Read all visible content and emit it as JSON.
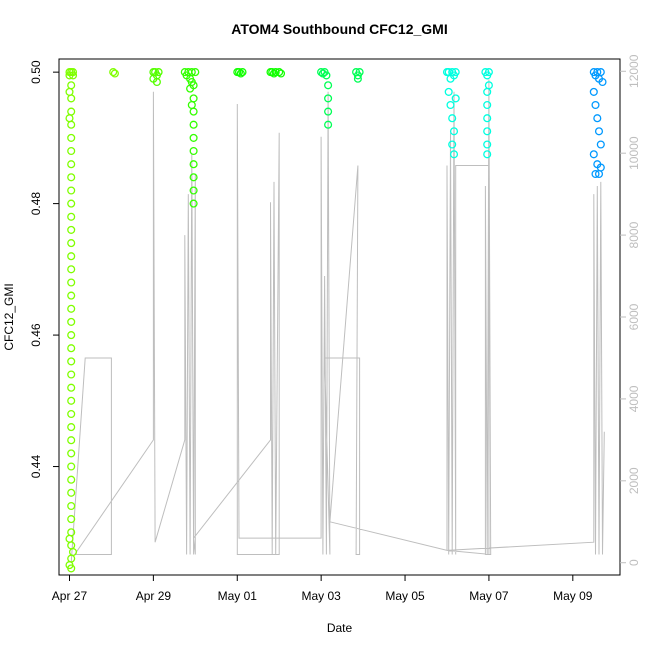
{
  "chart_data": {
    "type": "scatter",
    "title": "ATOM4 Southbound CFC12_GMI",
    "xlabel": "Date",
    "ylabel": "CFC12_GMI",
    "x_ticks": [
      "Apr 27",
      "Apr 29",
      "May 01",
      "May 03",
      "May 05",
      "May 07",
      "May 09"
    ],
    "y_ticks": [
      "0.44",
      "0.46",
      "0.48",
      "0.50"
    ],
    "y2_ticks": [
      "0",
      "2000",
      "4000",
      "6000",
      "8000",
      "10000",
      "12000"
    ],
    "xlim": [
      "2018-04-26 18:00",
      "2018-05-10 03:00"
    ],
    "ylim": [
      0.4235,
      0.502
    ],
    "y2lim": [
      -300,
      12300
    ],
    "grid": false,
    "legend": "none",
    "series": [
      {
        "kind": "points",
        "color": "#7fff00",
        "points": [
          [
            "2018-04-27 01:00",
            0.5
          ],
          [
            "2018-04-27 01:00",
            0.498
          ],
          [
            "2018-04-27 01:00",
            0.496
          ],
          [
            "2018-04-27 01:00",
            0.494
          ],
          [
            "2018-04-27 01:00",
            0.492
          ],
          [
            "2018-04-27 01:00",
            0.49
          ],
          [
            "2018-04-27 01:00",
            0.488
          ],
          [
            "2018-04-27 01:00",
            0.486
          ],
          [
            "2018-04-27 01:00",
            0.484
          ],
          [
            "2018-04-27 01:00",
            0.482
          ],
          [
            "2018-04-27 01:00",
            0.48
          ],
          [
            "2018-04-27 01:00",
            0.478
          ],
          [
            "2018-04-27 01:00",
            0.476
          ],
          [
            "2018-04-27 01:00",
            0.474
          ],
          [
            "2018-04-27 01:00",
            0.472
          ],
          [
            "2018-04-27 01:00",
            0.47
          ],
          [
            "2018-04-27 01:00",
            0.468
          ],
          [
            "2018-04-27 01:00",
            0.466
          ],
          [
            "2018-04-27 01:00",
            0.464
          ],
          [
            "2018-04-27 01:00",
            0.462
          ],
          [
            "2018-04-27 01:00",
            0.46
          ],
          [
            "2018-04-27 01:00",
            0.458
          ],
          [
            "2018-04-27 01:00",
            0.456
          ],
          [
            "2018-04-27 01:00",
            0.454
          ],
          [
            "2018-04-27 01:00",
            0.452
          ],
          [
            "2018-04-27 01:00",
            0.45
          ],
          [
            "2018-04-27 01:00",
            0.448
          ],
          [
            "2018-04-27 01:00",
            0.446
          ],
          [
            "2018-04-27 01:00",
            0.444
          ],
          [
            "2018-04-27 01:00",
            0.442
          ],
          [
            "2018-04-27 01:00",
            0.44
          ],
          [
            "2018-04-27 01:00",
            0.438
          ],
          [
            "2018-04-27 01:00",
            0.436
          ],
          [
            "2018-04-27 01:00",
            0.434
          ],
          [
            "2018-04-27 01:00",
            0.432
          ],
          [
            "2018-04-27 01:00",
            0.43
          ],
          [
            "2018-04-27 01:00",
            0.428
          ],
          [
            "2018-04-27 01:00",
            0.426
          ],
          [
            "2018-04-27 01:00",
            0.4245
          ],
          [
            "2018-04-27 00:00",
            0.5
          ],
          [
            "2018-04-27 02:00",
            0.5
          ],
          [
            "2018-04-27 00:00",
            0.4995
          ],
          [
            "2018-04-27 02:00",
            0.4995
          ],
          [
            "2018-04-27 00:00",
            0.497
          ],
          [
            "2018-04-27 00:00",
            0.493
          ],
          [
            "2018-04-27 00:00",
            0.429
          ],
          [
            "2018-04-27 02:00",
            0.427
          ],
          [
            "2018-04-27 00:00",
            0.425
          ]
        ]
      },
      {
        "kind": "points",
        "color": "#7fff00",
        "points": [
          [
            "2018-04-28 01:00",
            0.5
          ],
          [
            "2018-04-28 02:00",
            0.4998
          ]
        ]
      },
      {
        "kind": "points",
        "color": "#55ff00",
        "points": [
          [
            "2018-04-29 00:00",
            0.5
          ],
          [
            "2018-04-29 01:00",
            0.5
          ],
          [
            "2018-04-29 02:00",
            0.4995
          ],
          [
            "2018-04-29 03:00",
            0.5
          ],
          [
            "2018-04-29 00:00",
            0.499
          ],
          [
            "2018-04-29 02:00",
            0.4985
          ]
        ]
      },
      {
        "kind": "points",
        "color": "#33ff00",
        "points": [
          [
            "2018-04-29 18:00",
            0.5
          ],
          [
            "2018-04-29 19:00",
            0.4995
          ],
          [
            "2018-04-29 20:00",
            0.5
          ],
          [
            "2018-04-29 21:00",
            0.499
          ],
          [
            "2018-04-29 22:00",
            0.5
          ],
          [
            "2018-04-30 00:00",
            0.5
          ],
          [
            "2018-04-29 23:00",
            0.498
          ],
          [
            "2018-04-29 23:00",
            0.496
          ],
          [
            "2018-04-29 23:00",
            0.494
          ],
          [
            "2018-04-29 23:00",
            0.492
          ],
          [
            "2018-04-29 23:00",
            0.49
          ],
          [
            "2018-04-29 23:00",
            0.488
          ],
          [
            "2018-04-29 23:00",
            0.486
          ],
          [
            "2018-04-29 23:00",
            0.484
          ],
          [
            "2018-04-29 23:00",
            0.482
          ],
          [
            "2018-04-29 23:00",
            0.48
          ],
          [
            "2018-04-29 22:00",
            0.4985
          ],
          [
            "2018-04-29 21:00",
            0.4975
          ],
          [
            "2018-04-29 22:00",
            0.495
          ]
        ]
      },
      {
        "kind": "points",
        "color": "#11ff00",
        "points": [
          [
            "2018-05-01 00:00",
            0.5
          ],
          [
            "2018-05-01 01:00",
            0.5
          ],
          [
            "2018-05-01 02:00",
            0.4998
          ],
          [
            "2018-05-01 03:00",
            0.5
          ],
          [
            "2018-05-01 19:00",
            0.5
          ],
          [
            "2018-05-01 20:00",
            0.5
          ],
          [
            "2018-05-01 21:00",
            0.4998
          ],
          [
            "2018-05-01 22:00",
            0.5
          ],
          [
            "2018-05-02 00:00",
            0.5
          ],
          [
            "2018-05-02 01:00",
            0.4998
          ]
        ]
      },
      {
        "kind": "points",
        "color": "#00ff55",
        "points": [
          [
            "2018-05-03 00:00",
            0.5
          ],
          [
            "2018-05-03 01:00",
            0.4998
          ],
          [
            "2018-05-03 02:00",
            0.5
          ],
          [
            "2018-05-03 03:00",
            0.4995
          ],
          [
            "2018-05-03 04:00",
            0.498
          ],
          [
            "2018-05-03 04:00",
            0.496
          ],
          [
            "2018-05-03 04:00",
            0.494
          ],
          [
            "2018-05-03 04:00",
            0.492
          ],
          [
            "2018-05-03 20:00",
            0.5
          ],
          [
            "2018-05-03 21:00",
            0.4995
          ],
          [
            "2018-05-03 22:00",
            0.5
          ],
          [
            "2018-05-03 21:00",
            0.499
          ]
        ]
      },
      {
        "kind": "points",
        "color": "#00ffe0",
        "points": [
          [
            "2018-05-06 00:00",
            0.5
          ],
          [
            "2018-05-06 01:00",
            0.5
          ],
          [
            "2018-05-06 02:00",
            0.499
          ],
          [
            "2018-05-06 03:00",
            0.5
          ],
          [
            "2018-05-06 04:00",
            0.4995
          ],
          [
            "2018-05-06 05:00",
            0.5
          ],
          [
            "2018-05-06 01:00",
            0.497
          ],
          [
            "2018-05-06 02:00",
            0.495
          ],
          [
            "2018-05-06 03:00",
            0.493
          ],
          [
            "2018-05-06 04:00",
            0.491
          ],
          [
            "2018-05-06 03:00",
            0.489
          ],
          [
            "2018-05-06 04:00",
            0.4875
          ],
          [
            "2018-05-06 05:00",
            0.496
          ],
          [
            "2018-05-06 22:00",
            0.5
          ],
          [
            "2018-05-06 23:00",
            0.4995
          ],
          [
            "2018-05-07 00:00",
            0.5
          ],
          [
            "2018-05-06 23:00",
            0.497
          ],
          [
            "2018-05-06 23:00",
            0.495
          ],
          [
            "2018-05-06 23:00",
            0.493
          ],
          [
            "2018-05-06 23:00",
            0.491
          ],
          [
            "2018-05-06 23:00",
            0.489
          ],
          [
            "2018-05-06 23:00",
            0.4875
          ],
          [
            "2018-05-07 00:00",
            0.498
          ]
        ]
      },
      {
        "kind": "points",
        "color": "#0099ff",
        "points": [
          [
            "2018-05-09 12:00",
            0.5
          ],
          [
            "2018-05-09 13:00",
            0.4995
          ],
          [
            "2018-05-09 14:00",
            0.5
          ],
          [
            "2018-05-09 15:00",
            0.499
          ],
          [
            "2018-05-09 16:00",
            0.5
          ],
          [
            "2018-05-09 12:00",
            0.497
          ],
          [
            "2018-05-09 13:00",
            0.495
          ],
          [
            "2018-05-09 14:00",
            0.493
          ],
          [
            "2018-05-09 15:00",
            0.491
          ],
          [
            "2018-05-09 16:00",
            0.489
          ],
          [
            "2018-05-09 12:00",
            0.4875
          ],
          [
            "2018-05-09 14:00",
            0.486
          ],
          [
            "2018-05-09 13:00",
            0.4845
          ],
          [
            "2018-05-09 15:00",
            0.4845
          ],
          [
            "2018-05-09 16:00",
            0.4855
          ],
          [
            "2018-05-09 17:00",
            0.4985
          ]
        ]
      },
      {
        "kind": "line",
        "axis": "y2",
        "name": "",
        "color": "#bebebe",
        "points": [
          [
            "2018-04-27 01:00",
            0
          ],
          [
            "2018-04-27 09:00",
            5000
          ],
          [
            "2018-04-28 00:00",
            5000
          ],
          [
            "2018-04-28 00:00",
            200
          ],
          [
            "2018-04-27 03:00",
            200
          ],
          [
            "2018-04-29 00:00",
            3000
          ],
          [
            "2018-04-29 00:00",
            11500
          ],
          [
            "2018-04-29 01:00",
            500
          ],
          [
            "2018-04-29 18:00",
            3000
          ],
          [
            "2018-04-29 18:00",
            8000
          ],
          [
            "2018-04-29 19:00",
            200
          ],
          [
            "2018-04-29 20:00",
            9000
          ],
          [
            "2018-04-29 21:00",
            200
          ],
          [
            "2018-04-29 22:00",
            10000
          ],
          [
            "2018-04-29 23:00",
            200
          ],
          [
            "2018-04-30 00:00",
            9500
          ],
          [
            "2018-04-30 00:00",
            200
          ],
          [
            "2018-04-29 23:00",
            600
          ],
          [
            "2018-05-01 19:00",
            3000
          ],
          [
            "2018-05-01 19:00",
            8800
          ],
          [
            "2018-05-01 20:00",
            200
          ],
          [
            "2018-05-01 21:00",
            9300
          ],
          [
            "2018-05-01 22:00",
            200
          ],
          [
            "2018-05-02 00:00",
            10500
          ],
          [
            "2018-05-02 00:00",
            200
          ],
          [
            "2018-05-01 00:00",
            200
          ],
          [
            "2018-05-01 00:00",
            11200
          ],
          [
            "2018-05-01 01:00",
            600
          ],
          [
            "2018-05-03 00:00",
            600
          ],
          [
            "2018-05-03 00:00",
            10400
          ],
          [
            "2018-05-03 01:00",
            200
          ],
          [
            "2018-05-03 02:00",
            7000
          ],
          [
            "2018-05-03 03:00",
            200
          ],
          [
            "2018-05-03 04:00",
            11500
          ],
          [
            "2018-05-03 05:00",
            200
          ],
          [
            "2018-05-03 02:00",
            5000
          ],
          [
            "2018-05-03 22:00",
            5000
          ],
          [
            "2018-05-03 22:00",
            200
          ],
          [
            "2018-05-03 20:00",
            200
          ],
          [
            "2018-05-03 21:00",
            9700
          ],
          [
            "2018-05-03 05:00",
            1000
          ],
          [
            "2018-05-06 00:00",
            300
          ],
          [
            "2018-05-06 00:00",
            9700
          ],
          [
            "2018-05-06 01:00",
            200
          ],
          [
            "2018-05-06 02:00",
            10500
          ],
          [
            "2018-05-06 03:00",
            200
          ],
          [
            "2018-05-06 04:00",
            11500
          ],
          [
            "2018-05-06 05:00",
            200
          ],
          [
            "2018-05-06 05:00",
            9700
          ],
          [
            "2018-05-07 00:00",
            9700
          ],
          [
            "2018-05-07 00:00",
            200
          ],
          [
            "2018-05-06 22:00",
            200
          ],
          [
            "2018-05-06 22:00",
            9200
          ],
          [
            "2018-05-06 23:00",
            200
          ],
          [
            "2018-05-07 00:00",
            11800
          ],
          [
            "2018-05-07 01:00",
            200
          ],
          [
            "2018-05-06 00:00",
            300
          ],
          [
            "2018-05-09 12:00",
            500
          ],
          [
            "2018-05-09 12:00",
            9000
          ],
          [
            "2018-05-09 13:00",
            200
          ],
          [
            "2018-05-09 14:00",
            9200
          ],
          [
            "2018-05-09 15:00",
            200
          ],
          [
            "2018-05-09 16:00",
            9300
          ],
          [
            "2018-05-09 17:00",
            200
          ],
          [
            "2018-05-09 18:00",
            3200
          ]
        ]
      }
    ]
  }
}
